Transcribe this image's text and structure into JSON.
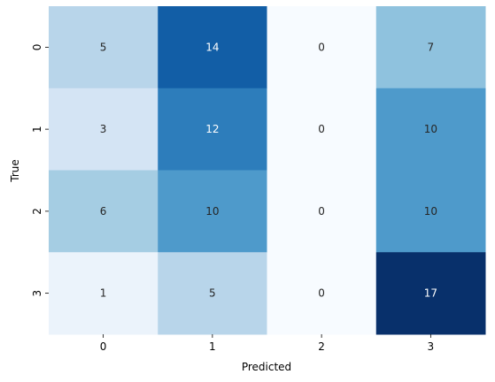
{
  "chart_data": {
    "type": "heatmap",
    "title": "",
    "xlabel": "Predicted",
    "ylabel": "True",
    "x_categories": [
      "0",
      "1",
      "2",
      "3"
    ],
    "y_categories": [
      "0",
      "1",
      "2",
      "3"
    ],
    "values": [
      [
        5,
        14,
        0,
        7
      ],
      [
        3,
        12,
        0,
        10
      ],
      [
        6,
        10,
        0,
        10
      ],
      [
        1,
        5,
        0,
        17
      ]
    ],
    "colormap": "Blues",
    "value_range": [
      0,
      17
    ],
    "annotations": true,
    "colorbar": false
  }
}
